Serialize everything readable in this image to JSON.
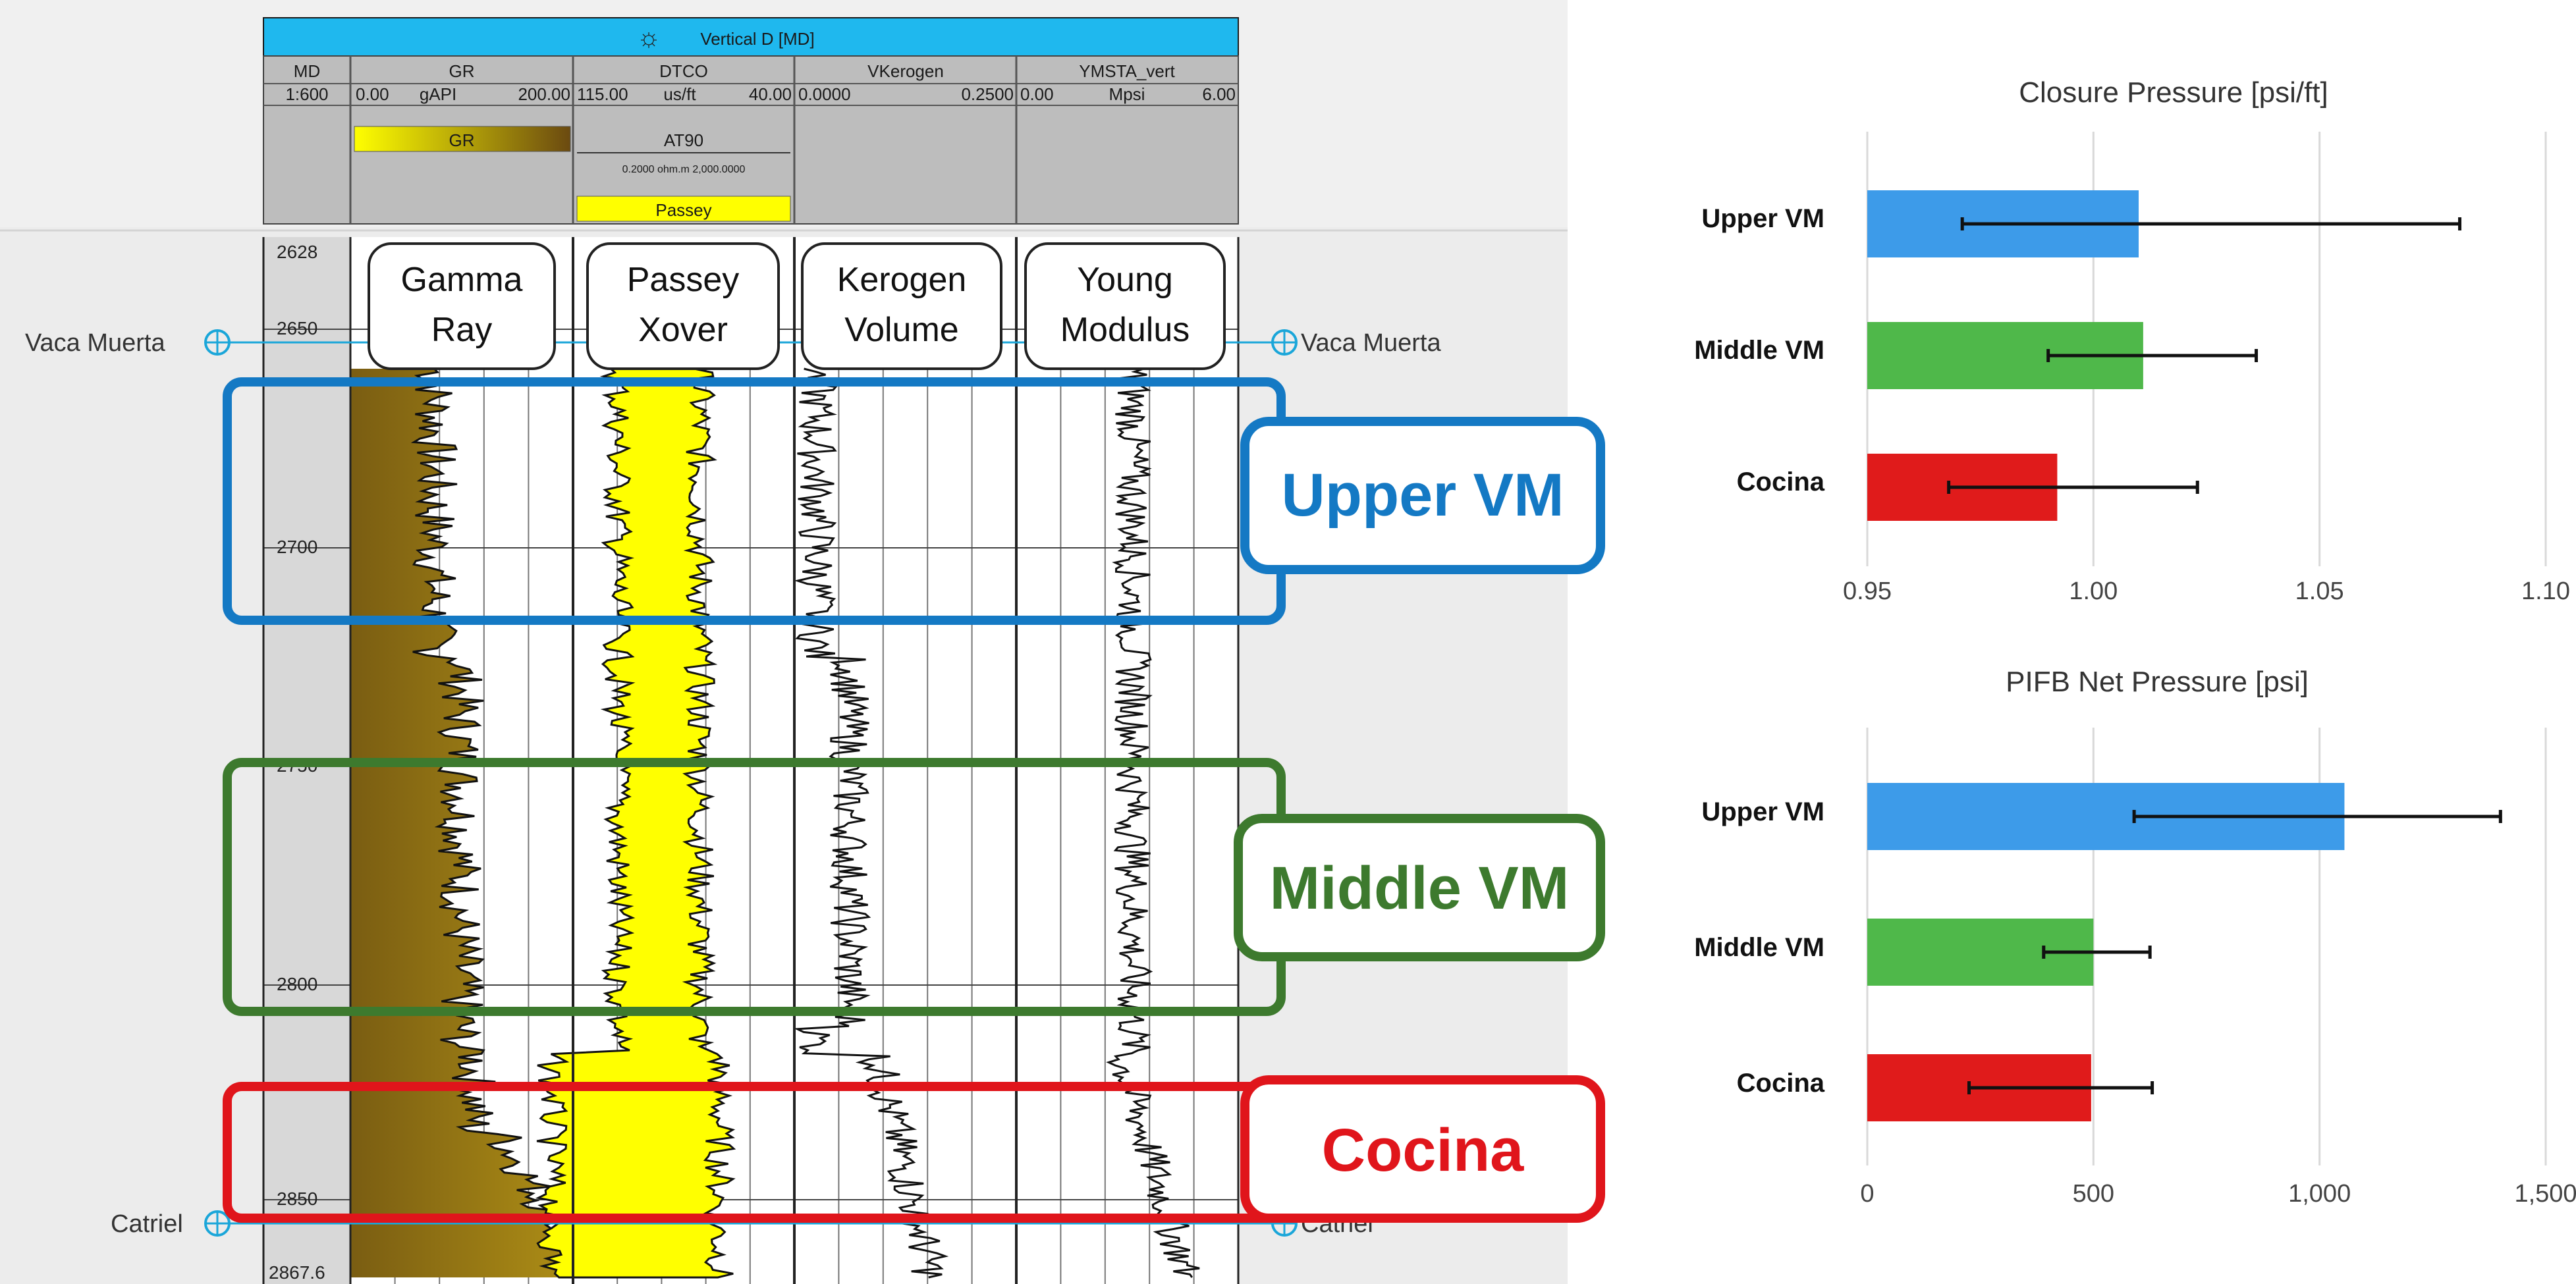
{
  "well_log": {
    "title": "Vertical D [MD]",
    "tracks": [
      {
        "name": "MD",
        "scale": "1:600"
      },
      {
        "name": "GR",
        "scale_min": "0.00",
        "unit": "gAPI",
        "scale_max": "200.00",
        "fill_label": "GR"
      },
      {
        "name": "DTCO",
        "scale_min": "115.00",
        "unit": "us/ft",
        "scale_max": "40.00",
        "sub_curve": "AT90",
        "sub_scale": "0.2000 ohm.m 2,000.0000",
        "fill_label": "Passey"
      },
      {
        "name": "VKerogen",
        "scale_min": "0.0000",
        "unit": "",
        "scale_max": "0.2500"
      },
      {
        "name": "YMSTA_vert",
        "scale_min": "0.00",
        "unit": "Mpsi",
        "scale_max": "6.00"
      }
    ],
    "depth_ticks": [
      "2628",
      "2650",
      "2700",
      "2750",
      "2800",
      "2850",
      "2867.6"
    ],
    "track_bubbles": [
      {
        "line1": "Gamma",
        "line2": "Ray"
      },
      {
        "line1": "Passey",
        "line2": "Xover"
      },
      {
        "line1": "Kerogen",
        "line2": "Volume"
      },
      {
        "line1": "Young",
        "line2": "Modulus"
      }
    ],
    "markers": {
      "top": "Vaca Muerta",
      "bottom_left": "Catriel",
      "bottom_right": "Catriel"
    },
    "zones": [
      {
        "label": "Upper VM",
        "color": "#1479c4"
      },
      {
        "label": "Middle VM",
        "color": "#3d7a2e"
      },
      {
        "label": "Cocina",
        "color": "#e0151b"
      }
    ]
  },
  "chart_data": [
    {
      "type": "bar",
      "orientation": "horizontal",
      "title": "Closure Pressure [psi/ft]",
      "categories": [
        "Upper VM",
        "Middle VM",
        "Cocina"
      ],
      "values": [
        1.01,
        1.011,
        0.992
      ],
      "error_low": [
        0.971,
        0.99,
        0.968
      ],
      "error_high": [
        1.081,
        1.036,
        1.023
      ],
      "colors": [
        "#3d9be9",
        "#4fb84a",
        "#e01b1b"
      ],
      "xlim": [
        0.95,
        1.1
      ],
      "ticks": [
        "0.95",
        "1.00",
        "1.05",
        "1.10"
      ],
      "tick_values": [
        0.95,
        1.0,
        1.05,
        1.1
      ],
      "grid": true
    },
    {
      "type": "bar",
      "orientation": "horizontal",
      "title": "PIFB Net Pressure [psi]",
      "categories": [
        "Upper VM",
        "Middle VM",
        "Cocina"
      ],
      "values": [
        1055,
        500,
        495
      ],
      "error_low": [
        590,
        390,
        225
      ],
      "error_high": [
        1400,
        625,
        630
      ],
      "colors": [
        "#3d9be9",
        "#4fb84a",
        "#e01b1b"
      ],
      "xlim": [
        0,
        1500
      ],
      "ticks": [
        "0",
        "500",
        "1,000",
        "1,500"
      ],
      "tick_values": [
        0,
        500,
        1000,
        1500
      ],
      "grid": true
    }
  ]
}
